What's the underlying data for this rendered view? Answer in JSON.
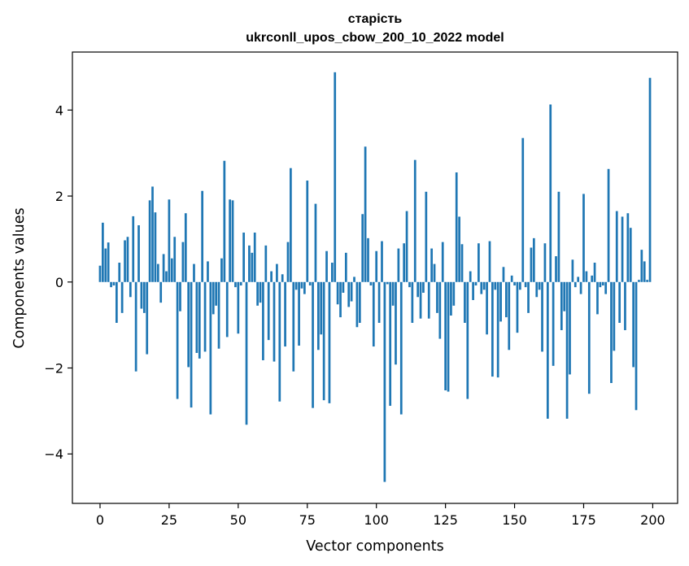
{
  "chart_data": {
    "type": "bar",
    "title": "старість",
    "subtitle": "ukrconll_upos_cbow_200_10_2022 model",
    "xlabel": "Vector components",
    "ylabel": "Components values",
    "xlim": [
      -10,
      209
    ],
    "ylim": [
      -5.15,
      5.35
    ],
    "xticks": [
      0,
      25,
      50,
      75,
      100,
      125,
      150,
      175,
      200
    ],
    "yticks": [
      -4,
      -2,
      0,
      2,
      4
    ],
    "ytick_labels": [
      "−4",
      "−2",
      "0",
      "2",
      "4"
    ],
    "bar_color": "#1f77b4",
    "grid": false,
    "x": [
      0,
      1,
      2,
      3,
      4,
      5,
      6,
      7,
      8,
      9,
      10,
      11,
      12,
      13,
      14,
      15,
      16,
      17,
      18,
      19,
      20,
      21,
      22,
      23,
      24,
      25,
      26,
      27,
      28,
      29,
      30,
      31,
      32,
      33,
      34,
      35,
      36,
      37,
      38,
      39,
      40,
      41,
      42,
      43,
      44,
      45,
      46,
      47,
      48,
      49,
      50,
      51,
      52,
      53,
      54,
      55,
      56,
      57,
      58,
      59,
      60,
      61,
      62,
      63,
      64,
      65,
      66,
      67,
      68,
      69,
      70,
      71,
      72,
      73,
      74,
      75,
      76,
      77,
      78,
      79,
      80,
      81,
      82,
      83,
      84,
      85,
      86,
      87,
      88,
      89,
      90,
      91,
      92,
      93,
      94,
      95,
      96,
      97,
      98,
      99,
      100,
      101,
      102,
      103,
      104,
      105,
      106,
      107,
      108,
      109,
      110,
      111,
      112,
      113,
      114,
      115,
      116,
      117,
      118,
      119,
      120,
      121,
      122,
      123,
      124,
      125,
      126,
      127,
      128,
      129,
      130,
      131,
      132,
      133,
      134,
      135,
      136,
      137,
      138,
      139,
      140,
      141,
      142,
      143,
      144,
      145,
      146,
      147,
      148,
      149,
      150,
      151,
      152,
      153,
      154,
      155,
      156,
      157,
      158,
      159,
      160,
      161,
      162,
      163,
      164,
      165,
      166,
      167,
      168,
      169,
      170,
      171,
      172,
      173,
      174,
      175,
      176,
      177,
      178,
      179,
      180,
      181,
      182,
      183,
      184,
      185,
      186,
      187,
      188,
      189,
      190,
      191,
      192,
      193,
      194,
      195,
      196,
      197,
      198,
      199
    ],
    "values": [
      0.38,
      1.38,
      0.78,
      0.92,
      -0.12,
      -0.08,
      -0.95,
      0.45,
      -0.72,
      0.97,
      1.05,
      -0.35,
      1.53,
      -2.08,
      1.32,
      -0.62,
      -0.72,
      -1.68,
      1.9,
      2.22,
      1.62,
      0.42,
      -0.48,
      0.65,
      0.25,
      1.92,
      0.55,
      1.05,
      -2.72,
      -0.68,
      0.93,
      1.6,
      -1.98,
      -2.92,
      0.42,
      -1.65,
      -1.78,
      2.12,
      -1.62,
      0.48,
      -3.08,
      -0.75,
      -0.55,
      -1.55,
      0.55,
      2.82,
      -1.28,
      1.92,
      1.9,
      -0.12,
      -1.2,
      -0.08,
      1.15,
      -3.32,
      0.85,
      0.68,
      1.15,
      -0.55,
      -0.48,
      -1.82,
      0.85,
      -1.35,
      0.25,
      -1.85,
      0.42,
      -2.78,
      0.18,
      -1.5,
      0.93,
      2.65,
      -2.08,
      -0.18,
      -1.48,
      -0.15,
      -0.28,
      2.36,
      -0.08,
      -2.93,
      1.82,
      -1.58,
      -1.22,
      -2.75,
      0.72,
      -2.82,
      0.45,
      4.88,
      -0.52,
      -0.82,
      -0.25,
      0.68,
      -0.58,
      -0.45,
      0.12,
      -1.05,
      -0.95,
      1.58,
      3.15,
      1.02,
      -0.08,
      -1.5,
      0.72,
      -0.95,
      0.95,
      -4.65,
      -0.05,
      -2.88,
      -0.55,
      -1.92,
      0.78,
      -3.08,
      0.9,
      1.65,
      -0.12,
      -0.95,
      2.84,
      -0.35,
      -0.85,
      -0.25,
      2.1,
      -0.85,
      0.78,
      0.42,
      -0.72,
      -1.32,
      0.93,
      -2.52,
      -2.55,
      -0.78,
      -0.55,
      2.55,
      1.52,
      0.88,
      -0.95,
      -2.72,
      0.25,
      -0.42,
      -0.08,
      0.9,
      -0.28,
      -0.18,
      -1.22,
      0.95,
      -2.2,
      -0.18,
      -2.22,
      -0.92,
      0.35,
      -0.82,
      -1.58,
      0.15,
      -0.08,
      -1.18,
      -0.18,
      3.35,
      -0.12,
      -0.72,
      0.8,
      1.02,
      -0.35,
      -0.18,
      -1.62,
      0.9,
      -3.18,
      4.13,
      -1.95,
      0.6,
      2.1,
      -1.12,
      -0.68,
      -3.18,
      -2.15,
      0.52,
      -0.12,
      0.12,
      -0.28,
      2.05,
      0.25,
      -2.6,
      0.15,
      0.45,
      -0.75,
      -0.12,
      -0.08,
      -0.28,
      2.63,
      -2.35,
      -1.6,
      1.65,
      -0.95,
      1.52,
      -1.12,
      1.6,
      1.26,
      -1.98,
      -2.98,
      0.05,
      0.75,
      0.48,
      0.05,
      4.75
    ]
  }
}
